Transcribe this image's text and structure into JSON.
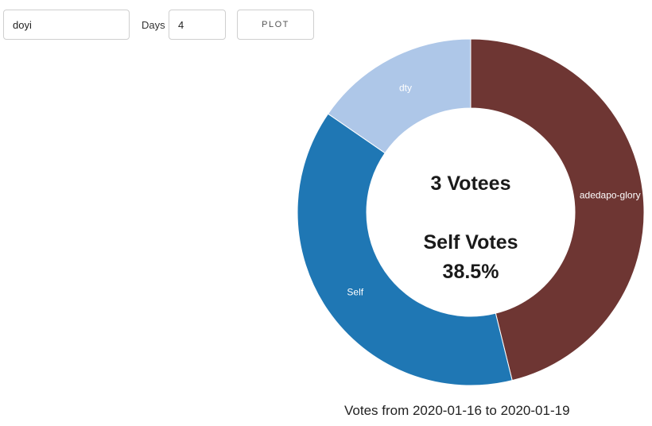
{
  "form": {
    "user_value": "doyi",
    "days_label": "Days",
    "days_value": "4",
    "plot_label": "PLOT"
  },
  "chart_data": {
    "type": "pie",
    "donut": true,
    "slices": [
      {
        "label": "adedapo-glory",
        "value": 46.2,
        "color": "#6e3633"
      },
      {
        "label": "Self",
        "value": 38.5,
        "color": "#1f77b4"
      },
      {
        "label": "dty",
        "value": 15.4,
        "color": "#aec7e8"
      }
    ],
    "center": {
      "votees": "3 Votees",
      "self_title": "Self Votes",
      "self_value": "38.5%"
    },
    "caption": "Votes from 2020-01-16 to 2020-01-19"
  }
}
